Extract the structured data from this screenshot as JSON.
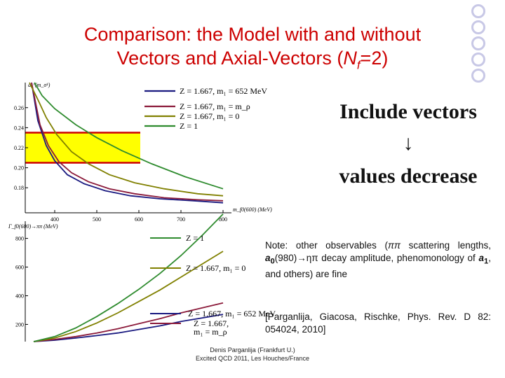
{
  "slide": {
    "title_line1": "Comparison: the Model with and without",
    "title_line2_a": "Vectors and Axial-Vectors (",
    "title_line2_n": "N",
    "title_line2_sub": "f",
    "title_line2_b": "=2)",
    "side_text": {
      "top": "Include vectors",
      "arrow": "↓",
      "bottom": "values decrease"
    },
    "note": {
      "prefix": "Note: other observables (",
      "pipi": "ππ",
      "mid1": " scattering lengths, ",
      "a0": "a",
      "a0_sub": "0",
      "mid2": "(980)→ηπ decay amplitude, phenomonology of ",
      "a1": "a",
      "a1_sub": "1",
      "suffix": ", and others) are fine"
    },
    "reference": "[Parganlija, Giacosa, Rischke, Phys. Rev. D 82: 054024, 2010]",
    "footer": {
      "line1": "Denis Parganlija (Frankfurt U.)",
      "line2": "Excited QCD 2011, Les Houches/France"
    },
    "colors": {
      "title": "#cc0000",
      "band": "#ffff00",
      "band_edge": "#cc0000",
      "ring": "#c8c8e6"
    }
  },
  "chart_data": [
    {
      "type": "line",
      "ylabel": "a₀⁰(m_σ¹)",
      "xlabel": "m_f0(600) (MeV)",
      "xlim": [
        330,
        820
      ],
      "ylim": [
        0.155,
        0.285
      ],
      "x_ticks": [
        "400",
        "500",
        "600",
        "700",
        "800"
      ],
      "x_tick_values": [
        400,
        500,
        600,
        700,
        800
      ],
      "y_ticks": [
        "0.18",
        "0.20",
        "0.22",
        "0.24",
        "0.26"
      ],
      "y_tick_values": [
        0.18,
        0.2,
        0.22,
        0.24,
        0.26
      ],
      "band": [
        0.205,
        0.235
      ],
      "grid": false,
      "legend_position": "top-center",
      "series": [
        {
          "name": "Z = 1.667, m₁ = 652 MeV",
          "color": "#1a1a80",
          "x": [
            345,
            360,
            380,
            400,
            430,
            470,
            520,
            580,
            650,
            730,
            800
          ],
          "y": [
            0.285,
            0.247,
            0.222,
            0.207,
            0.193,
            0.184,
            0.177,
            0.172,
            0.169,
            0.167,
            0.165
          ]
        },
        {
          "name": "Z = 1.667, m₁ = m_ρ",
          "color": "#8b1a3a",
          "x": [
            345,
            365,
            385,
            410,
            440,
            480,
            530,
            590,
            660,
            740,
            800
          ],
          "y": [
            0.285,
            0.243,
            0.222,
            0.206,
            0.195,
            0.186,
            0.179,
            0.174,
            0.17,
            0.168,
            0.167
          ]
        },
        {
          "name": "Z = 1.667, m₁ = 0",
          "color": "#808000",
          "x": [
            340,
            360,
            380,
            405,
            440,
            480,
            530,
            590,
            660,
            740,
            800
          ],
          "y": [
            0.285,
            0.268,
            0.25,
            0.233,
            0.216,
            0.204,
            0.193,
            0.185,
            0.179,
            0.174,
            0.172
          ]
        },
        {
          "name": "Z = 1",
          "color": "#2e8b2e",
          "x": [
            352,
            370,
            400,
            450,
            500,
            560,
            630,
            710,
            800
          ],
          "y": [
            0.285,
            0.272,
            0.259,
            0.243,
            0.23,
            0.217,
            0.204,
            0.191,
            0.179
          ]
        }
      ]
    },
    {
      "type": "line",
      "ylabel": "Γ_f0(600)→ππ (MeV)",
      "xlabel": "m_f0(600) (MeV)",
      "xlim": [
        330,
        820
      ],
      "ylim": [
        80,
        920
      ],
      "y_ticks": [
        "200",
        "400",
        "600",
        "800"
      ],
      "y_tick_values": [
        200,
        400,
        600,
        800
      ],
      "grid": false,
      "labels": [
        {
          "text": "Z = 1",
          "series": 3
        },
        {
          "text": "Z = 1.667, m₁ = 0",
          "series": 2
        },
        {
          "text": "Z = 1.667, m₁ = 652 MeV",
          "series": 0
        },
        {
          "text": "Z = 1.667,",
          "series": 1
        },
        {
          "text": "m₁ = m_ρ",
          "series": 1
        }
      ],
      "series": [
        {
          "name": "Z = 1.667, m₁ = 652 MeV",
          "color": "#1a1a80",
          "x": [
            350,
            400,
            450,
            500,
            550,
            600,
            650,
            700,
            750,
            800
          ],
          "y": [
            0,
            10,
            25,
            42,
            60,
            85,
            110,
            140,
            165,
            190
          ]
        },
        {
          "name": "Z = 1.667, m₁ = m_ρ",
          "color": "#8b1a3a",
          "x": [
            350,
            400,
            450,
            500,
            550,
            600,
            650,
            700,
            750,
            800
          ],
          "y": [
            0,
            15,
            35,
            60,
            90,
            125,
            160,
            200,
            235,
            270
          ]
        },
        {
          "name": "Z = 1.667, m₁ = 0",
          "color": "#808000",
          "x": [
            350,
            400,
            450,
            500,
            550,
            600,
            650,
            700,
            750,
            800
          ],
          "y": [
            0,
            25,
            70,
            130,
            200,
            280,
            360,
            450,
            540,
            630
          ]
        },
        {
          "name": "Z = 1",
          "color": "#2e8b2e",
          "x": [
            350,
            400,
            450,
            500,
            550,
            600,
            650,
            700,
            750,
            800
          ],
          "y": [
            0,
            35,
            95,
            175,
            265,
            365,
            475,
            600,
            740,
            890
          ]
        }
      ]
    }
  ]
}
